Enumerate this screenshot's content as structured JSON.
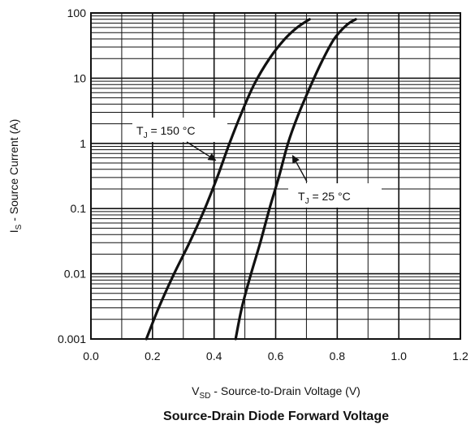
{
  "chart_data": {
    "type": "line",
    "title": "Source-Drain Diode Forward Voltage",
    "xlabel": {
      "main": "V",
      "sub": "SD",
      "rest": " - Source-to-Drain Voltage (V)"
    },
    "ylabel": {
      "main": "I",
      "sub": "S",
      "rest": " - Source Current (A)"
    },
    "xlim": [
      0.0,
      1.2
    ],
    "ylim": [
      0.001,
      100
    ],
    "yscale": "log",
    "grid": true,
    "x_ticks": [
      "0.0",
      "0.2",
      "0.4",
      "0.6",
      "0.8",
      "1.0",
      "1.2"
    ],
    "y_ticks": [
      "0.001",
      "0.01",
      "0.1",
      "1",
      "10",
      "100"
    ],
    "series": [
      {
        "annotation": {
          "main": "T",
          "sub": "J",
          "rest": " = 150 °C"
        },
        "x": [
          0.18,
          0.22,
          0.27,
          0.32,
          0.37,
          0.41,
          0.45,
          0.49,
          0.53,
          0.58,
          0.63,
          0.67,
          0.71
        ],
        "y": [
          0.001,
          0.003,
          0.01,
          0.03,
          0.1,
          0.3,
          1.0,
          3.0,
          8.0,
          20,
          40,
          60,
          80
        ]
      },
      {
        "annotation": {
          "main": "T",
          "sub": "J",
          "rest": " = 25 °C"
        },
        "x": [
          0.47,
          0.49,
          0.52,
          0.55,
          0.58,
          0.61,
          0.64,
          0.67,
          0.71,
          0.75,
          0.79,
          0.83,
          0.86
        ],
        "y": [
          0.001,
          0.003,
          0.01,
          0.03,
          0.1,
          0.3,
          1.0,
          2.5,
          7.0,
          18,
          40,
          65,
          80
        ]
      }
    ]
  }
}
